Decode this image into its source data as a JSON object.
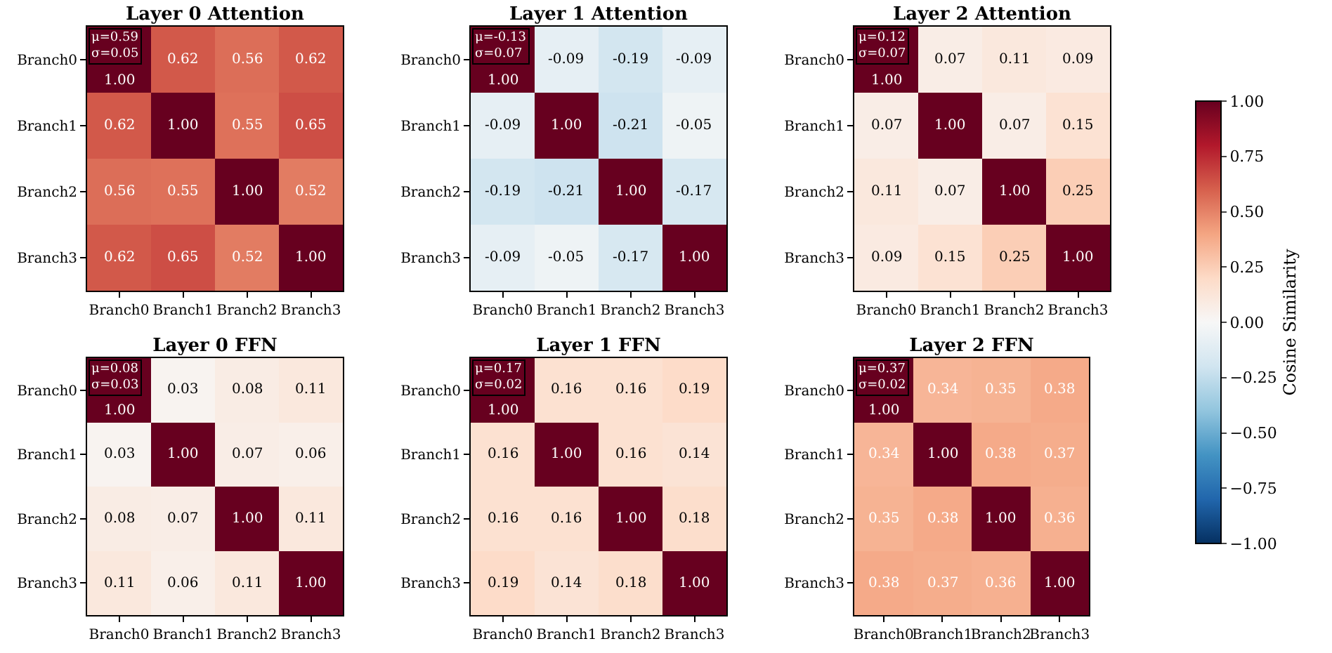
{
  "chart_data": [
    {
      "type": "heatmap",
      "title": "Layer 0 Attention",
      "categories": [
        "Branch0",
        "Branch1",
        "Branch2",
        "Branch3"
      ],
      "y_categories": [
        "Branch0",
        "Branch1",
        "Branch2",
        "Branch3"
      ],
      "cells": [
        [
          1,
          0.62,
          0.56,
          0.62
        ],
        [
          0.62,
          1,
          0.55,
          0.65
        ],
        [
          0.56,
          0.55,
          1,
          0.52
        ],
        [
          0.62,
          0.65,
          0.52,
          1
        ]
      ],
      "cell_labels": [
        [
          "1.00",
          "0.62",
          "0.56",
          "0.62"
        ],
        [
          "0.62",
          "1.00",
          "0.55",
          "0.65"
        ],
        [
          "0.56",
          "0.55",
          "1.00",
          "0.52"
        ],
        [
          "0.62",
          "0.65",
          "0.52",
          "1.00"
        ]
      ],
      "annotations": [
        "μ=0.59\nσ=0.05"
      ]
    },
    {
      "type": "heatmap",
      "title": "Layer 1 Attention",
      "categories": [
        "Branch0",
        "Branch1",
        "Branch2",
        "Branch3"
      ],
      "y_categories": [
        "Branch0",
        "Branch1",
        "Branch2",
        "Branch3"
      ],
      "cells": [
        [
          1,
          -0.09,
          -0.19,
          -0.09
        ],
        [
          -0.09,
          1,
          -0.21,
          -0.05
        ],
        [
          -0.19,
          -0.21,
          1,
          -0.17
        ],
        [
          -0.09,
          -0.05,
          -0.17,
          1
        ]
      ],
      "cell_labels": [
        [
          "1.00",
          "-0.09",
          "-0.19",
          "-0.09"
        ],
        [
          "-0.09",
          "1.00",
          "-0.21",
          "-0.05"
        ],
        [
          "-0.19",
          "-0.21",
          "1.00",
          "-0.17"
        ],
        [
          "-0.09",
          "-0.05",
          "-0.17",
          "1.00"
        ]
      ],
      "annotations": [
        "μ=-0.13\nσ=0.07"
      ]
    },
    {
      "type": "heatmap",
      "title": "Layer 2 Attention",
      "categories": [
        "Branch0",
        "Branch1",
        "Branch2",
        "Branch3"
      ],
      "y_categories": [
        "Branch0",
        "Branch1",
        "Branch2",
        "Branch3"
      ],
      "cells": [
        [
          1,
          0.07,
          0.11,
          0.09
        ],
        [
          0.07,
          1,
          0.07,
          0.15
        ],
        [
          0.11,
          0.07,
          1,
          0.25
        ],
        [
          0.09,
          0.15,
          0.25,
          1
        ]
      ],
      "cell_labels": [
        [
          "1.00",
          "0.07",
          "0.11",
          "0.09"
        ],
        [
          "0.07",
          "1.00",
          "0.07",
          "0.15"
        ],
        [
          "0.11",
          "0.07",
          "1.00",
          "0.25"
        ],
        [
          "0.09",
          "0.15",
          "0.25",
          "1.00"
        ]
      ],
      "annotations": [
        "μ=0.12\nσ=0.07"
      ]
    },
    {
      "type": "heatmap",
      "title": "Layer 0 FFN",
      "categories": [
        "Branch0",
        "Branch1",
        "Branch2",
        "Branch3"
      ],
      "y_categories": [
        "Branch0",
        "Branch1",
        "Branch2",
        "Branch3"
      ],
      "cells": [
        [
          1,
          0.03,
          0.08,
          0.11
        ],
        [
          0.03,
          1,
          0.07,
          0.06
        ],
        [
          0.08,
          0.07,
          1,
          0.11
        ],
        [
          0.11,
          0.06,
          0.11,
          1
        ]
      ],
      "cell_labels": [
        [
          "1.00",
          "0.03",
          "0.08",
          "0.11"
        ],
        [
          "0.03",
          "1.00",
          "0.07",
          "0.06"
        ],
        [
          "0.08",
          "0.07",
          "1.00",
          "0.11"
        ],
        [
          "0.11",
          "0.06",
          "0.11",
          "1.00"
        ]
      ],
      "annotations": [
        "μ=0.08\nσ=0.03"
      ]
    },
    {
      "type": "heatmap",
      "title": "Layer 1 FFN",
      "categories": [
        "Branch0",
        "Branch1",
        "Branch2",
        "Branch3"
      ],
      "y_categories": [
        "Branch0",
        "Branch1",
        "Branch2",
        "Branch3"
      ],
      "cells": [
        [
          1,
          0.16,
          0.16,
          0.19
        ],
        [
          0.16,
          1,
          0.16,
          0.14
        ],
        [
          0.16,
          0.16,
          1,
          0.18
        ],
        [
          0.19,
          0.14,
          0.18,
          1
        ]
      ],
      "cell_labels": [
        [
          "1.00",
          "0.16",
          "0.16",
          "0.19"
        ],
        [
          "0.16",
          "1.00",
          "0.16",
          "0.14"
        ],
        [
          "0.16",
          "0.16",
          "1.00",
          "0.18"
        ],
        [
          "0.19",
          "0.14",
          "0.18",
          "1.00"
        ]
      ],
      "annotations": [
        "μ=0.17\nσ=0.02"
      ]
    },
    {
      "type": "heatmap",
      "title": "Layer 2 FFN",
      "categories": [
        "Branch0",
        "Branch1",
        "Branch2",
        "Branch3"
      ],
      "y_categories": [
        "Branch0",
        "Branch1",
        "Branch2",
        "Branch3"
      ],
      "clim": [
        -1,
        1
      ],
      "cells": [
        [
          1,
          0.34,
          0.35,
          0.38
        ],
        [
          0.34,
          1,
          0.38,
          0.37
        ],
        [
          0.35,
          0.38,
          1,
          0.36
        ],
        [
          0.38,
          0.37,
          0.36,
          1
        ]
      ],
      "cell_labels": [
        [
          "1.00",
          "0.34",
          "0.35",
          "0.38"
        ],
        [
          "0.34",
          "1.00",
          "0.38",
          "0.37"
        ],
        [
          "0.35",
          "0.38",
          "1.00",
          "0.36"
        ],
        [
          "0.38",
          "0.37",
          "0.36",
          "1.00"
        ]
      ],
      "annotations": [
        "μ=0.37\nσ=0.02"
      ],
      "clabel": "Cosine Similarity",
      "cticks": [
        {
          "value": 1,
          "label": "1.00"
        },
        {
          "value": 0.75,
          "label": "0.75"
        },
        {
          "value": 0.5,
          "label": "0.50"
        },
        {
          "value": 0.25,
          "label": "0.25"
        },
        {
          "value": 0,
          "label": "0.00"
        },
        {
          "value": -0.25,
          "label": "−0.25"
        },
        {
          "value": -0.5,
          "label": "−0.50"
        },
        {
          "value": -0.75,
          "label": "−0.75"
        },
        {
          "value": -1,
          "label": "−1.00"
        }
      ]
    }
  ]
}
